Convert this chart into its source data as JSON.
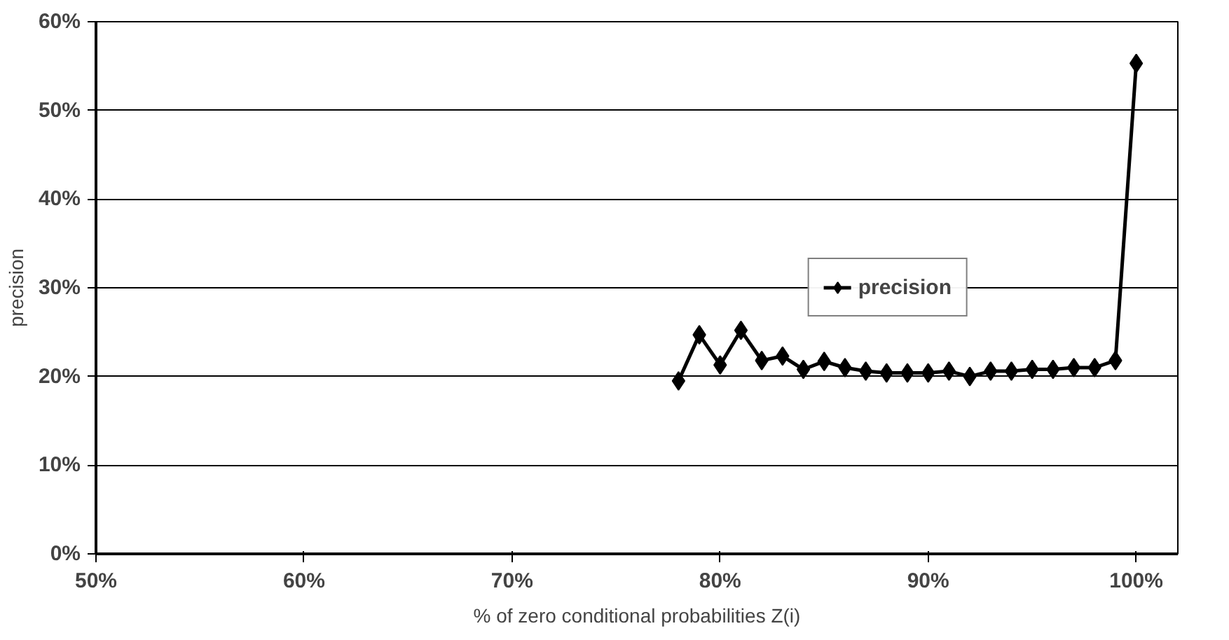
{
  "chart_data": {
    "type": "line",
    "xlabel": "% of zero conditional probabilities Z(i)",
    "ylabel": "precision",
    "xlim": [
      50,
      102
    ],
    "ylim": [
      0,
      60
    ],
    "xticks": [
      {
        "value": 50,
        "label": "50%"
      },
      {
        "value": 60,
        "label": "60%"
      },
      {
        "value": 70,
        "label": "70%"
      },
      {
        "value": 80,
        "label": "80%"
      },
      {
        "value": 90,
        "label": "90%"
      },
      {
        "value": 100,
        "label": "100%"
      }
    ],
    "yticks": [
      {
        "value": 0,
        "label": "0%"
      },
      {
        "value": 10,
        "label": "10%"
      },
      {
        "value": 20,
        "label": "20%"
      },
      {
        "value": 30,
        "label": "30%"
      },
      {
        "value": 40,
        "label": "40%"
      },
      {
        "value": 50,
        "label": "50%"
      },
      {
        "value": 60,
        "label": "60%"
      }
    ],
    "x": [
      78,
      79,
      80,
      81,
      82,
      83,
      84,
      85,
      86,
      87,
      88,
      89,
      90,
      91,
      92,
      93,
      94,
      95,
      96,
      97,
      98,
      99,
      100
    ],
    "series": [
      {
        "name": "precision",
        "color": "#000000",
        "values": [
          19.5,
          24.7,
          21.3,
          25.2,
          21.8,
          22.3,
          20.8,
          21.7,
          21.0,
          20.6,
          20.4,
          20.4,
          20.4,
          20.6,
          20.0,
          20.6,
          20.6,
          20.8,
          20.8,
          21.0,
          21.0,
          21.8,
          55.3
        ]
      }
    ],
    "grid": "y",
    "legend": "right",
    "marker": "diamond",
    "line_style": "solid"
  }
}
